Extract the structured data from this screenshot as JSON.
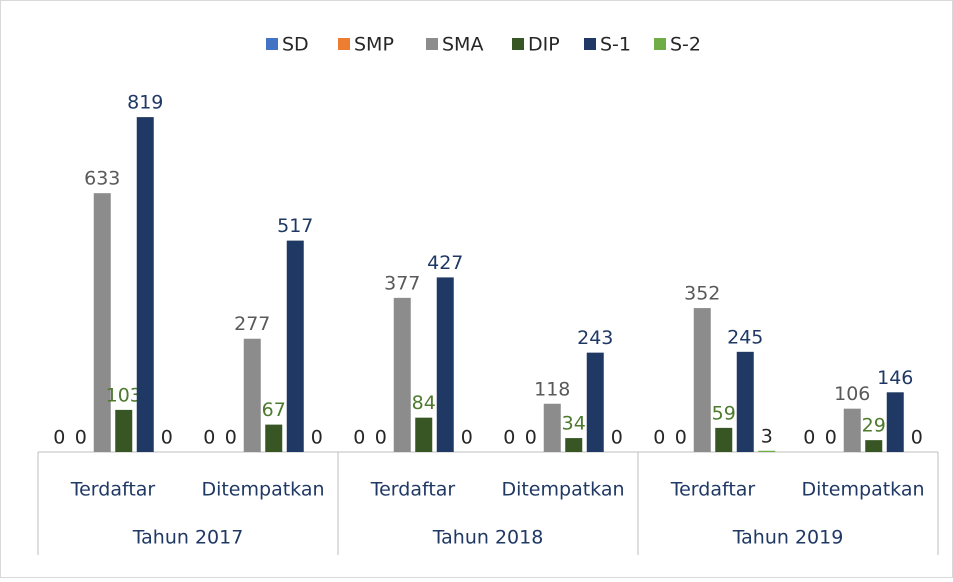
{
  "chart_data": {
    "type": "bar",
    "categories": [
      "Terdaftar",
      "Ditempatkan",
      "Terdaftar",
      "Ditempatkan",
      "Terdaftar",
      "Ditempatkan"
    ],
    "category_groups": [
      "Tahun 2017",
      "Tahun 2018",
      "Tahun 2019"
    ],
    "series": [
      {
        "name": "SD",
        "color": "#4472c4",
        "label_color": "#262626",
        "values": [
          0,
          0,
          0,
          0,
          0,
          0
        ]
      },
      {
        "name": "SMP",
        "color": "#ed7d31",
        "label_color": "#262626",
        "values": [
          0,
          0,
          0,
          0,
          0,
          0
        ]
      },
      {
        "name": "SMA",
        "color": "#8c8c8c",
        "label_color": "#595959",
        "values": [
          633,
          277,
          377,
          118,
          352,
          106
        ]
      },
      {
        "name": "DIP",
        "color": "#375623",
        "label_color": "#4e7a2e",
        "values": [
          103,
          67,
          84,
          34,
          59,
          29
        ]
      },
      {
        "name": "S-1",
        "color": "#1f3864",
        "label_color": "#1f3864",
        "values": [
          819,
          517,
          427,
          243,
          245,
          146
        ]
      },
      {
        "name": "S-2",
        "color": "#70ad47",
        "label_color": "#262626",
        "values": [
          0,
          0,
          0,
          0,
          3,
          0
        ]
      }
    ],
    "ylim": [
      0,
      900
    ],
    "grid": false,
    "legend": "top"
  }
}
